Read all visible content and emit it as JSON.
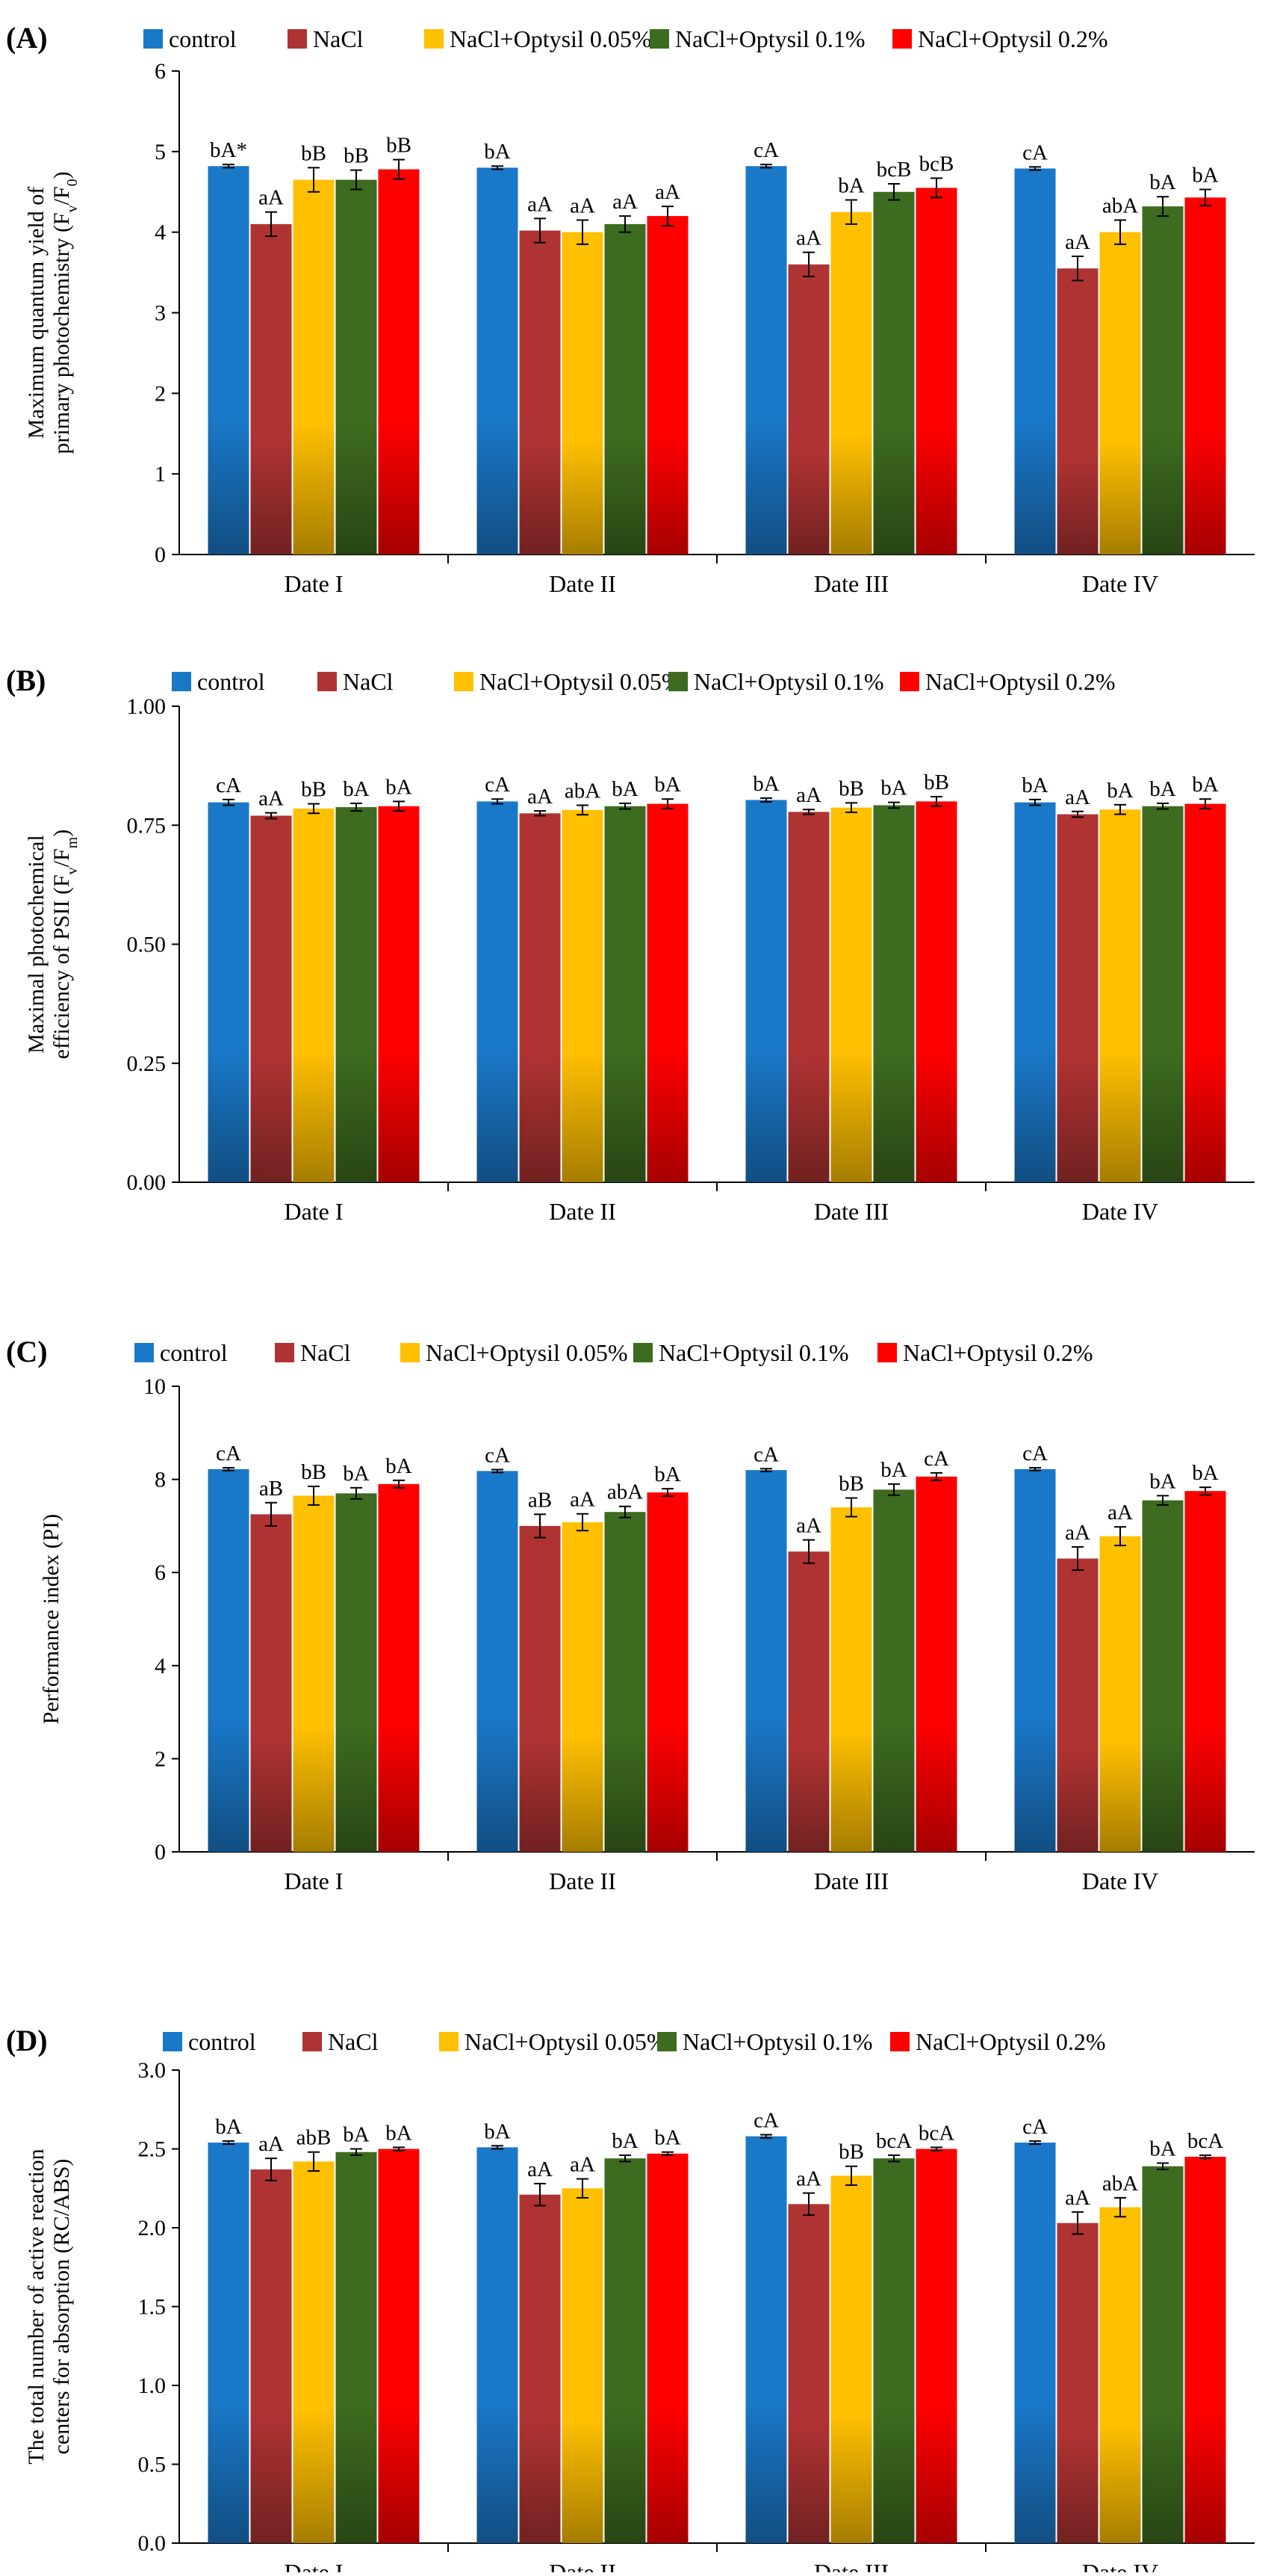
{
  "colors": {
    "control": "#1a78c8",
    "NaCl": "#b03333",
    "opt005": "#ffc000",
    "opt01": "#3d6b1f",
    "opt02": "#ff0000"
  },
  "legend": [
    "control",
    "NaCl",
    "NaCl+Optysil 0.05%",
    "NaCl+Optysil 0.1%",
    "NaCl+Optysil 0.2%"
  ],
  "chart_data": [
    {
      "type": "bar",
      "panel": "(A)",
      "ylabel_lines": [
        "Maximum quantum yield of",
        "primary photochemistry (Fv/F0)"
      ],
      "categories": [
        "Date I",
        "Date II",
        "Date III",
        "Date IV"
      ],
      "ylim": [
        0,
        6
      ],
      "yticks": [
        "0",
        "1",
        "2",
        "3",
        "4",
        "5",
        "6"
      ],
      "series": [
        {
          "name": "control",
          "values": [
            4.82,
            4.8,
            4.82,
            4.79
          ],
          "errors": [
            0.02,
            0.02,
            0.02,
            0.02
          ],
          "labels": [
            "bA*",
            "bA",
            "cA",
            "cA"
          ]
        },
        {
          "name": "NaCl",
          "values": [
            4.1,
            4.02,
            3.6,
            3.55
          ],
          "errors": [
            0.15,
            0.15,
            0.15,
            0.15
          ],
          "labels": [
            "aA",
            "aA",
            "aA",
            "aA"
          ]
        },
        {
          "name": "NaCl+Optysil 0.05%",
          "values": [
            4.65,
            4.0,
            4.25,
            4.0
          ],
          "errors": [
            0.15,
            0.15,
            0.15,
            0.15
          ],
          "labels": [
            "bB",
            "aA",
            "bA",
            "abA"
          ]
        },
        {
          "name": "NaCl+Optysil 0.1%",
          "values": [
            4.65,
            4.1,
            4.5,
            4.32
          ],
          "errors": [
            0.12,
            0.1,
            0.1,
            0.12
          ],
          "labels": [
            "bB",
            "aA",
            "bcB",
            "bA"
          ]
        },
        {
          "name": "NaCl+Optysil 0.2%",
          "values": [
            4.78,
            4.2,
            4.55,
            4.43
          ],
          "errors": [
            0.12,
            0.12,
            0.12,
            0.1
          ],
          "labels": [
            "bB",
            "aA",
            "bcB",
            "bA"
          ]
        }
      ]
    },
    {
      "type": "bar",
      "panel": "(B)",
      "ylabel_lines": [
        "Maximal photochemical",
        "efficiency of PSII (Fv/Fm)"
      ],
      "categories": [
        "Date I",
        "Date II",
        "Date III",
        "Date IV"
      ],
      "ylim": [
        0,
        1
      ],
      "yticks": [
        "0.00",
        "0.25",
        "0.50",
        "0.75",
        "1.00"
      ],
      "series": [
        {
          "name": "control",
          "values": [
            0.798,
            0.8,
            0.803,
            0.798
          ],
          "errors": [
            0.006,
            0.005,
            0.004,
            0.006
          ],
          "labels": [
            "cA",
            "cA",
            "bA",
            "bA"
          ]
        },
        {
          "name": "NaCl",
          "values": [
            0.77,
            0.775,
            0.778,
            0.773
          ],
          "errors": [
            0.006,
            0.005,
            0.005,
            0.006
          ],
          "labels": [
            "aA",
            "aA",
            "aA",
            "aA"
          ]
        },
        {
          "name": "NaCl+Optysil 0.05%",
          "values": [
            0.785,
            0.782,
            0.787,
            0.783
          ],
          "errors": [
            0.01,
            0.01,
            0.01,
            0.01
          ],
          "labels": [
            "bB",
            "abA",
            "bB",
            "bA"
          ]
        },
        {
          "name": "NaCl+Optysil 0.1%",
          "values": [
            0.788,
            0.79,
            0.792,
            0.79
          ],
          "errors": [
            0.008,
            0.006,
            0.006,
            0.006
          ],
          "labels": [
            "bA",
            "bA",
            "bA",
            "bA"
          ]
        },
        {
          "name": "NaCl+Optysil 0.2%",
          "values": [
            0.79,
            0.795,
            0.8,
            0.795
          ],
          "errors": [
            0.01,
            0.01,
            0.01,
            0.01
          ],
          "labels": [
            "bA",
            "bA",
            "bB",
            "bA"
          ]
        }
      ]
    },
    {
      "type": "bar",
      "panel": "(C)",
      "ylabel_lines": [
        "Performance index (PI)"
      ],
      "categories": [
        "Date I",
        "Date II",
        "Date III",
        "Date IV"
      ],
      "ylim": [
        0,
        10
      ],
      "yticks": [
        "0",
        "2",
        "4",
        "6",
        "8",
        "10"
      ],
      "series": [
        {
          "name": "control",
          "values": [
            8.22,
            8.18,
            8.2,
            8.22
          ],
          "errors": [
            0.03,
            0.03,
            0.03,
            0.03
          ],
          "labels": [
            "cA",
            "cA",
            "cA",
            "cA"
          ]
        },
        {
          "name": "NaCl",
          "values": [
            7.25,
            7.0,
            6.45,
            6.3
          ],
          "errors": [
            0.25,
            0.25,
            0.25,
            0.25
          ],
          "labels": [
            "aB",
            "aB",
            "aA",
            "aA"
          ]
        },
        {
          "name": "NaCl+Optysil 0.05%",
          "values": [
            7.65,
            7.08,
            7.4,
            6.78
          ],
          "errors": [
            0.2,
            0.18,
            0.2,
            0.2
          ],
          "labels": [
            "bB",
            "aA",
            "bB",
            "aA"
          ]
        },
        {
          "name": "NaCl+Optysil 0.1%",
          "values": [
            7.7,
            7.3,
            7.78,
            7.55
          ],
          "errors": [
            0.12,
            0.12,
            0.12,
            0.1
          ],
          "labels": [
            "bA",
            "abA",
            "bA",
            "bA"
          ]
        },
        {
          "name": "NaCl+Optysil 0.2%",
          "values": [
            7.9,
            7.72,
            8.06,
            7.75
          ],
          "errors": [
            0.08,
            0.08,
            0.08,
            0.08
          ],
          "labels": [
            "bA",
            "bA",
            "cA",
            "bA"
          ]
        }
      ]
    },
    {
      "type": "bar",
      "panel": "(D)",
      "ylabel_lines": [
        "The total number of active reaction",
        "centers for absorption (RC/ABS)"
      ],
      "categories": [
        "Date I",
        "Date II",
        "Date III",
        "Date IV"
      ],
      "ylim": [
        0,
        3
      ],
      "yticks": [
        "0.0",
        "0.5",
        "1.0",
        "1.5",
        "2.0",
        "2.5",
        "3.0"
      ],
      "series": [
        {
          "name": "control",
          "values": [
            2.54,
            2.51,
            2.58,
            2.54
          ],
          "errors": [
            0.01,
            0.01,
            0.01,
            0.01
          ],
          "labels": [
            "bA",
            "bA",
            "cA",
            "cA"
          ]
        },
        {
          "name": "NaCl",
          "values": [
            2.37,
            2.21,
            2.15,
            2.03
          ],
          "errors": [
            0.07,
            0.07,
            0.07,
            0.07
          ],
          "labels": [
            "aA",
            "aA",
            "aA",
            "aA"
          ]
        },
        {
          "name": "NaCl+Optysil 0.05%",
          "values": [
            2.42,
            2.25,
            2.33,
            2.13
          ],
          "errors": [
            0.06,
            0.06,
            0.06,
            0.06
          ],
          "labels": [
            "abB",
            "aA",
            "bB",
            "abA"
          ]
        },
        {
          "name": "NaCl+Optysil 0.1%",
          "values": [
            2.48,
            2.44,
            2.44,
            2.39
          ],
          "errors": [
            0.02,
            0.02,
            0.02,
            0.02
          ],
          "labels": [
            "bA",
            "bA",
            "bcA",
            "bA"
          ]
        },
        {
          "name": "NaCl+Optysil 0.2%",
          "values": [
            2.5,
            2.47,
            2.5,
            2.45
          ],
          "errors": [
            0.01,
            0.01,
            0.01,
            0.01
          ],
          "labels": [
            "bA",
            "bA",
            "bcA",
            "bcA"
          ]
        }
      ]
    }
  ]
}
